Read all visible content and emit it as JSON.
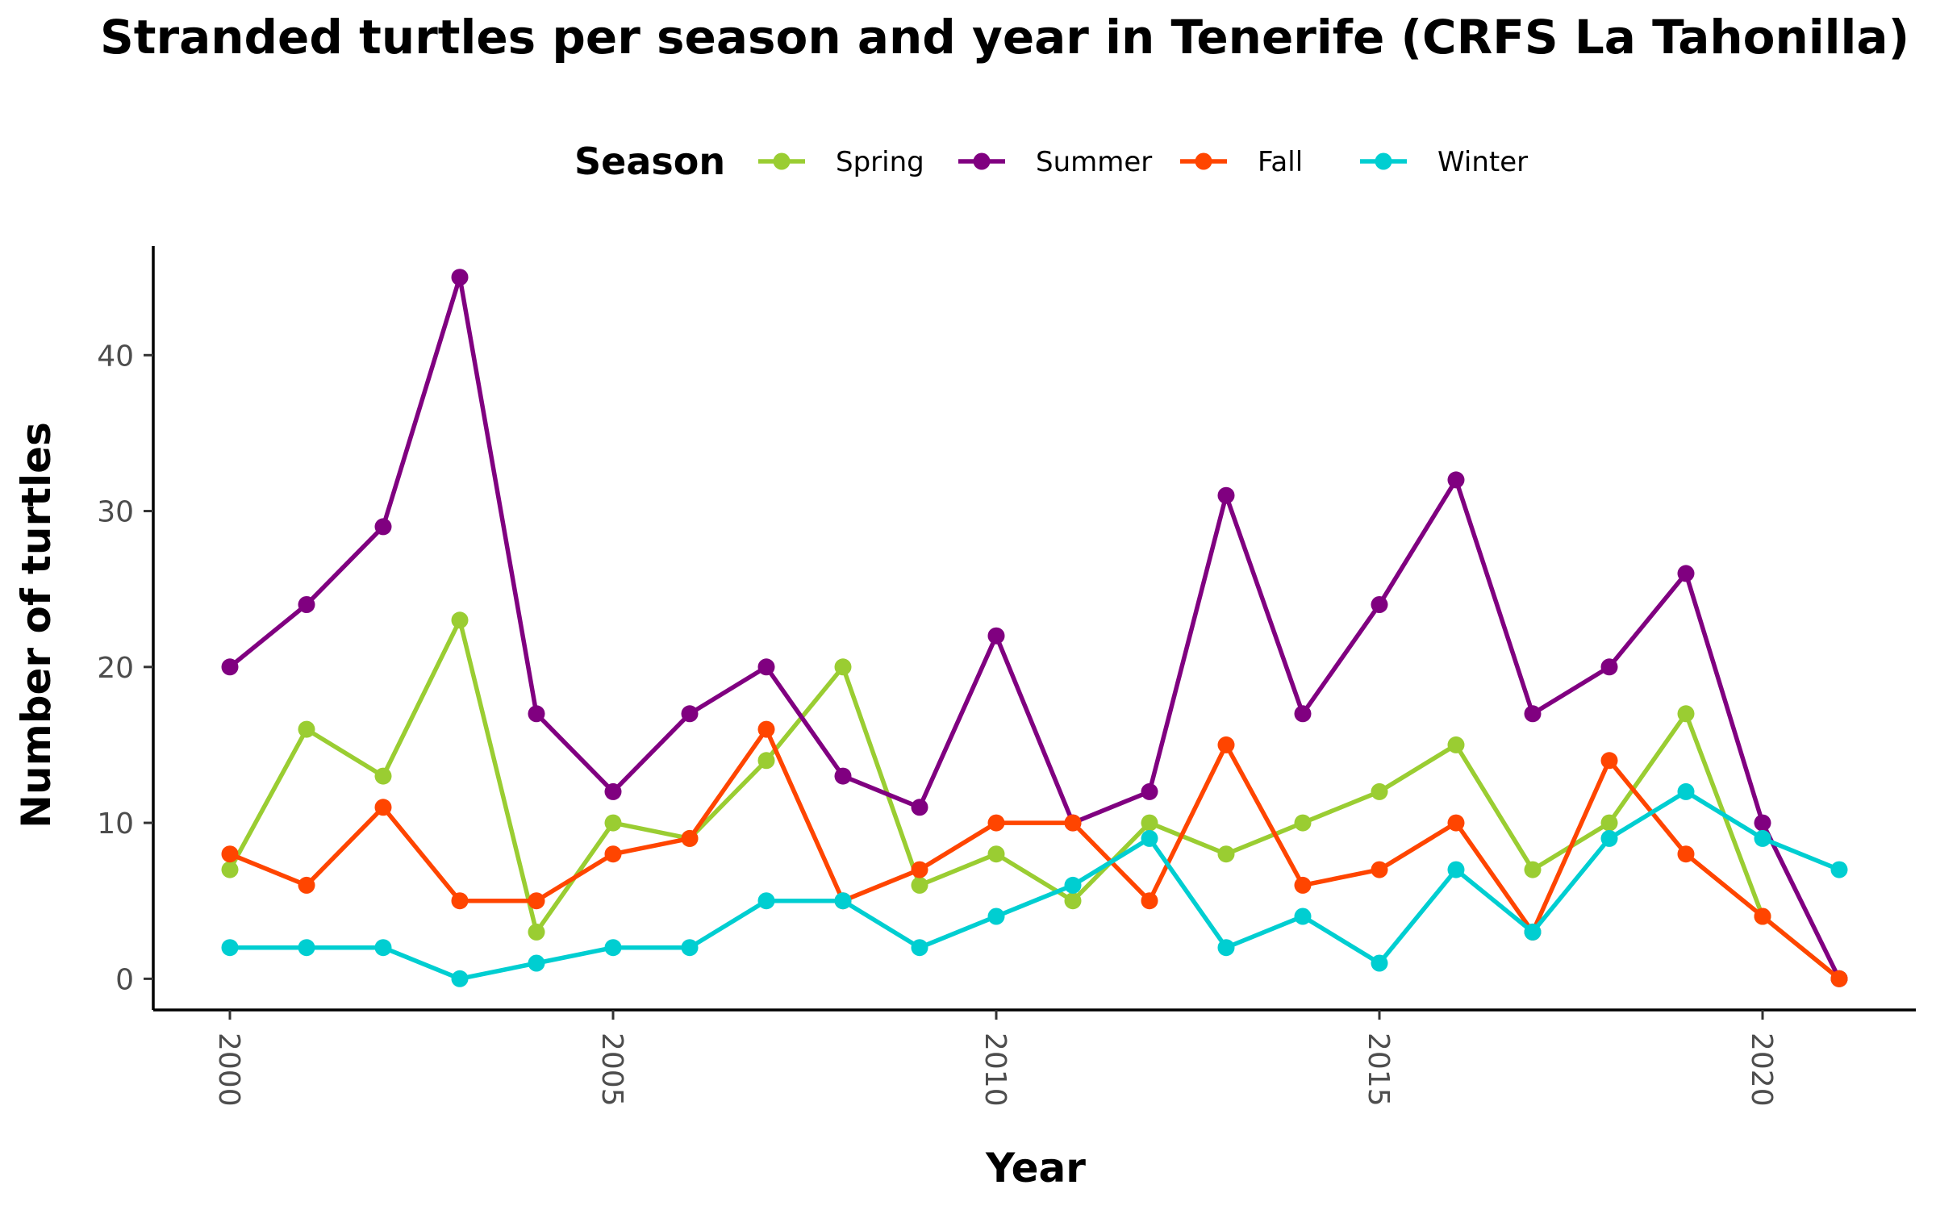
{
  "chart_data": {
    "type": "line",
    "title": "Stranded turtles per season and year in Tenerife (CRFS La Tahonilla)",
    "xlabel": "Year",
    "ylabel": "Number of turtles",
    "legend_title": "Season",
    "legend_position": "top",
    "grid": false,
    "xlim": [
      1999,
      2022
    ],
    "ylim": [
      -2,
      47
    ],
    "x_ticks": [
      2000,
      2005,
      2010,
      2015,
      2020
    ],
    "y_ticks": [
      0,
      10,
      20,
      30,
      40
    ],
    "x": [
      2000,
      2001,
      2002,
      2003,
      2004,
      2005,
      2006,
      2007,
      2008,
      2009,
      2010,
      2011,
      2012,
      2013,
      2014,
      2015,
      2016,
      2017,
      2018,
      2019,
      2020,
      2021
    ],
    "series": [
      {
        "name": "Spring",
        "color": "#9acd32",
        "values": [
          7,
          16,
          13,
          23,
          3,
          10,
          9,
          14,
          20,
          6,
          8,
          5,
          10,
          8,
          10,
          12,
          15,
          7,
          10,
          17,
          4,
          0
        ]
      },
      {
        "name": "Summer",
        "color": "#800080",
        "values": [
          20,
          24,
          29,
          45,
          17,
          12,
          17,
          20,
          13,
          11,
          22,
          10,
          12,
          31,
          17,
          24,
          32,
          17,
          20,
          26,
          10,
          0
        ]
      },
      {
        "name": "Fall",
        "color": "#ff4500",
        "values": [
          8,
          6,
          11,
          5,
          5,
          8,
          9,
          16,
          5,
          7,
          10,
          10,
          5,
          15,
          6,
          7,
          10,
          3,
          14,
          8,
          4,
          0
        ]
      },
      {
        "name": "Winter",
        "color": "#00ced1",
        "values": [
          2,
          2,
          2,
          0,
          1,
          2,
          2,
          5,
          5,
          2,
          4,
          6,
          9,
          2,
          4,
          1,
          7,
          3,
          9,
          12,
          9,
          7
        ]
      }
    ]
  }
}
